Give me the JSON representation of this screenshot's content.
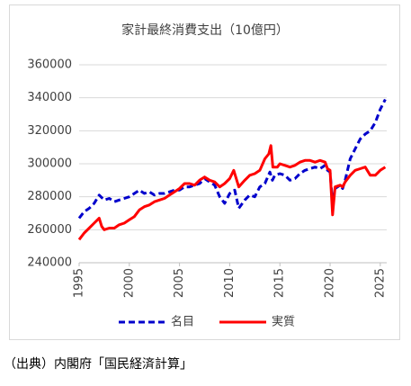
{
  "chart_data": {
    "type": "line",
    "title": "家計最終消費支出（10億円）",
    "source": "（出典）内閣府「国民経済計算」",
    "xlim": [
      1995,
      2026
    ],
    "xticks": [
      1995,
      2000,
      2005,
      2010,
      2015,
      2020,
      2025
    ],
    "ylim": [
      240000,
      360000
    ],
    "yticks": [
      240000,
      260000,
      280000,
      300000,
      320000,
      340000,
      360000
    ],
    "grid": true,
    "legend": "bottom",
    "series": [
      {
        "name": "名目",
        "color": "#0000cc",
        "dashed": true,
        "x": [
          1995.0,
          1995.5,
          1996.0,
          1996.5,
          1997.0,
          1997.5,
          1998.0,
          1998.5,
          1999.0,
          1999.5,
          2000.0,
          2000.5,
          2001.0,
          2001.5,
          2002.0,
          2002.5,
          2003.0,
          2003.5,
          2004.0,
          2004.5,
          2005.0,
          2005.5,
          2006.0,
          2006.5,
          2007.0,
          2007.5,
          2008.0,
          2008.5,
          2009.0,
          2009.5,
          2010.0,
          2010.5,
          2010.9,
          2011.5,
          2012.0,
          2012.5,
          2013.0,
          2013.5,
          2014.0,
          2014.25,
          2014.5,
          2015.0,
          2015.5,
          2016.0,
          2016.5,
          2017.0,
          2017.5,
          2018.0,
          2018.5,
          2019.0,
          2019.5,
          2019.75,
          2020.0,
          2020.25,
          2020.5,
          2021.0,
          2021.25,
          2021.5,
          2022.0,
          2022.5,
          2023.0,
          2023.5,
          2024.0,
          2024.5,
          2025.0,
          2025.5
        ],
        "values": [
          267000,
          271000,
          273000,
          276000,
          281000,
          278000,
          279000,
          277000,
          278000,
          279000,
          280000,
          282000,
          284000,
          282000,
          283000,
          281000,
          282000,
          282000,
          283000,
          284000,
          284000,
          286000,
          286000,
          287000,
          288000,
          291000,
          289000,
          287000,
          280000,
          276000,
          282000,
          284000,
          273000,
          278000,
          281000,
          280000,
          286000,
          288000,
          295000,
          290000,
          293000,
          294000,
          293000,
          290000,
          291000,
          294000,
          296000,
          297000,
          298000,
          297000,
          299000,
          296000,
          295000,
          276000,
          285000,
          287000,
          285000,
          290000,
          303000,
          309000,
          315000,
          318000,
          320000,
          325000,
          333000,
          339000
        ]
      },
      {
        "name": "実質",
        "color": "#ff0000",
        "dashed": false,
        "x": [
          1995.0,
          1995.5,
          1996.0,
          1996.5,
          1997.0,
          1997.25,
          1997.5,
          1998.0,
          1998.5,
          1999.0,
          1999.5,
          2000.0,
          2000.5,
          2001.0,
          2001.5,
          2002.0,
          2002.5,
          2003.0,
          2003.5,
          2004.0,
          2004.5,
          2005.0,
          2005.5,
          2006.0,
          2006.5,
          2007.0,
          2007.5,
          2008.0,
          2008.5,
          2009.0,
          2009.5,
          2010.0,
          2010.4,
          2010.9,
          2011.5,
          2012.0,
          2012.5,
          2013.0,
          2013.5,
          2013.9,
          2014.1,
          2014.3,
          2014.75,
          2015.0,
          2015.5,
          2016.0,
          2016.5,
          2017.0,
          2017.5,
          2018.0,
          2018.5,
          2019.0,
          2019.5,
          2019.75,
          2020.0,
          2020.25,
          2020.5,
          2021.0,
          2021.25,
          2021.5,
          2022.0,
          2022.5,
          2023.0,
          2023.5,
          2024.0,
          2024.5,
          2025.0,
          2025.5
        ],
        "values": [
          254000,
          258000,
          261000,
          264000,
          267000,
          262000,
          260000,
          261000,
          261000,
          263000,
          264000,
          266000,
          268000,
          272000,
          274000,
          275000,
          277000,
          278000,
          279000,
          281000,
          283000,
          285000,
          288000,
          288000,
          287000,
          290000,
          292000,
          290000,
          289000,
          286000,
          288000,
          291000,
          296000,
          286000,
          290000,
          293000,
          294000,
          296000,
          303000,
          306000,
          311000,
          298000,
          298000,
          300000,
          299000,
          298000,
          299000,
          301000,
          302000,
          302000,
          301000,
          302000,
          301000,
          297000,
          296000,
          269000,
          286000,
          287000,
          286000,
          289000,
          293000,
          296000,
          297000,
          298000,
          293000,
          293000,
          296000,
          298000
        ]
      }
    ]
  }
}
